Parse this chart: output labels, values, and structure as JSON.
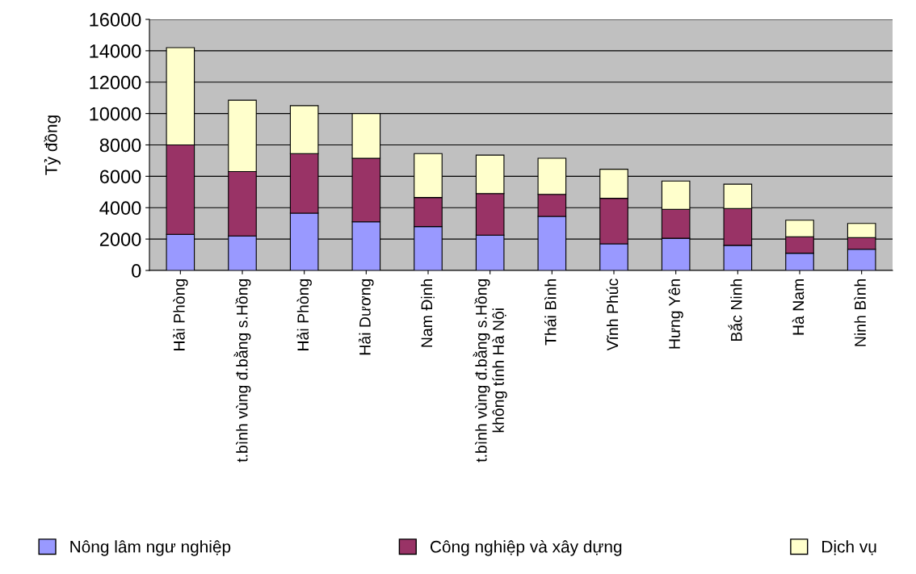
{
  "chart_data": {
    "type": "bar",
    "stacked": true,
    "ylabel": "Tỷ đồng",
    "categories": [
      "Hải Phòng",
      "t.bình vùng đ.bằng s.Hồng",
      "Hải Phòng",
      "Hải Dương",
      "Nam Định",
      "t.bình vùng đ.bằng s.Hồng\nkhông tính Hà Nội",
      "Thái Bình",
      "Vĩnh Phúc",
      "Hưng Yên",
      "Bắc Ninh",
      "Hà Nam",
      "Ninh Bình"
    ],
    "series": [
      {
        "name": "Nông lâm ngư nghiệp",
        "color": "#9999ff",
        "values": [
          2300,
          2200,
          3650,
          3100,
          2800,
          2250,
          3450,
          1700,
          2050,
          1600,
          1100,
          1350
        ]
      },
      {
        "name": "Công nghiệp và xây dựng",
        "color": "#993366",
        "values": [
          5700,
          4100,
          3800,
          4050,
          1850,
          2650,
          1400,
          2900,
          1850,
          2350,
          1050,
          750
        ]
      },
      {
        "name": "Dịch vụ",
        "color": "#ffffcc",
        "values": [
          6200,
          4550,
          3050,
          2850,
          2800,
          2450,
          2300,
          1850,
          1800,
          1550,
          1050,
          900
        ]
      }
    ],
    "ylim": [
      0,
      16000
    ],
    "yticks": [
      0,
      2000,
      4000,
      6000,
      8000,
      10000,
      12000,
      14000,
      16000
    ],
    "grid": "y",
    "legend": "bottom"
  }
}
